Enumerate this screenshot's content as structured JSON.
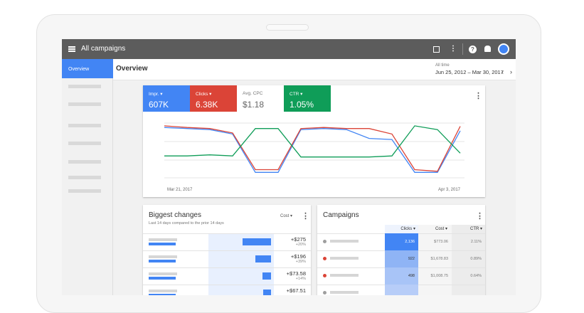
{
  "topbar": {
    "title": "All campaigns",
    "more": "⋮",
    "help": "?"
  },
  "sidebar": {
    "active_label": "Overview"
  },
  "header": {
    "title": "Overview",
    "range_label": "All time",
    "range_value": "Jun 25, 2012 – Mar 30, 2017",
    "prev": "‹",
    "next": "›"
  },
  "overview": {
    "menu": "⋮",
    "metrics": [
      {
        "label": "Impr. ▾",
        "value": "607K",
        "color": "#4285f4"
      },
      {
        "label": "Clicks ▾",
        "value": "6.38K",
        "color": "#db4437"
      },
      {
        "label": "Avg. CPC",
        "value": "$1.18",
        "color": "#ffffff"
      },
      {
        "label": "CTR ▾",
        "value": "1.05%",
        "color": "#0f9d58"
      }
    ],
    "x_start": "Mar 21, 2017",
    "x_end": "Apr 3, 2017"
  },
  "biggest_changes": {
    "title": "Biggest changes",
    "subtitle": "Last 14 days compared to the prior 14 days",
    "sort_label": "Cost ▾",
    "menu": "⋮",
    "rows": [
      {
        "value": "+$275",
        "pct": "+20%",
        "bar": 1.0
      },
      {
        "value": "+$196",
        "pct": "+39%",
        "bar": 0.55
      },
      {
        "value": "+$73.58",
        "pct": "+14%",
        "bar": 0.3
      },
      {
        "value": "+$67.51",
        "pct": "",
        "bar": 0.28
      }
    ]
  },
  "campaigns": {
    "title": "Campaigns",
    "menu": "⋮",
    "headers": [
      "Clicks ▾",
      "Cost ▾",
      "CTR ▾"
    ],
    "rows": [
      {
        "status": "#9e9e9e",
        "clicks": "2,136",
        "cost": "$773.06",
        "ctr": "2.11%",
        "shade": "#4285f4"
      },
      {
        "status": "#db4437",
        "clicks": "922",
        "cost": "$1,678.83",
        "ctr": "0.89%",
        "shade": "#8fb4f5"
      },
      {
        "status": "#db4437",
        "clicks": "498",
        "cost": "$1,008.75",
        "ctr": "0.64%",
        "shade": "#a8c4f7"
      },
      {
        "status": "#9e9e9e",
        "clicks": "",
        "cost": "",
        "ctr": "",
        "shade": "#b7cdf8"
      }
    ]
  },
  "chart_data": {
    "type": "line",
    "x": [
      "Mar 21, 2017",
      "",
      "",
      "",
      "",
      "",
      "",
      "",
      "",
      "",
      "",
      "",
      "",
      "Apr 3, 2017"
    ],
    "series": [
      {
        "color": "#4285f4",
        "values": [
          0.92,
          0.9,
          0.88,
          0.8,
          0.1,
          0.1,
          0.88,
          0.9,
          0.88,
          0.72,
          0.7,
          0.1,
          0.1,
          0.86
        ]
      },
      {
        "color": "#db4437",
        "values": [
          0.95,
          0.92,
          0.9,
          0.82,
          0.15,
          0.15,
          0.9,
          0.92,
          0.9,
          0.9,
          0.8,
          0.15,
          0.12,
          0.94
        ]
      },
      {
        "color": "#0f9d58",
        "values": [
          0.4,
          0.4,
          0.42,
          0.4,
          0.9,
          0.9,
          0.38,
          0.38,
          0.38,
          0.38,
          0.4,
          0.95,
          0.88,
          0.45
        ]
      }
    ]
  }
}
